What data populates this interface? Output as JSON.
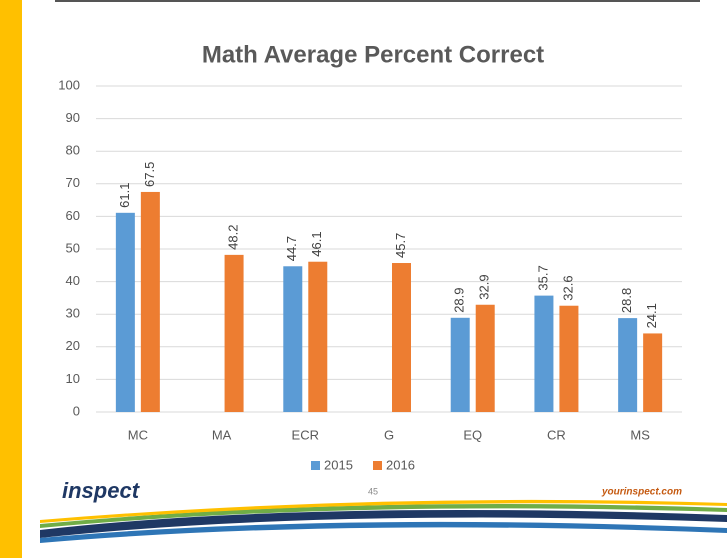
{
  "chart_data": {
    "type": "bar",
    "title": "Math Average Percent Correct",
    "categories": [
      "MC",
      "MA",
      "ECR",
      "G",
      "EQ",
      "CR",
      "MS"
    ],
    "series": [
      {
        "name": "2015",
        "color": "#5b9bd5",
        "values": [
          61.1,
          null,
          44.7,
          null,
          28.9,
          35.7,
          28.8
        ]
      },
      {
        "name": "2016",
        "color": "#ed7d31",
        "values": [
          67.5,
          48.2,
          46.1,
          45.7,
          32.9,
          32.6,
          24.1
        ]
      }
    ],
    "ylim": [
      0,
      100
    ],
    "yticks": [
      0,
      10,
      20,
      30,
      40,
      50,
      60,
      70,
      80,
      90,
      100
    ],
    "grid": true,
    "legend": "bottom"
  },
  "footer": {
    "logo": "inspect",
    "page_number": "45",
    "url": "yourinspect.com"
  }
}
